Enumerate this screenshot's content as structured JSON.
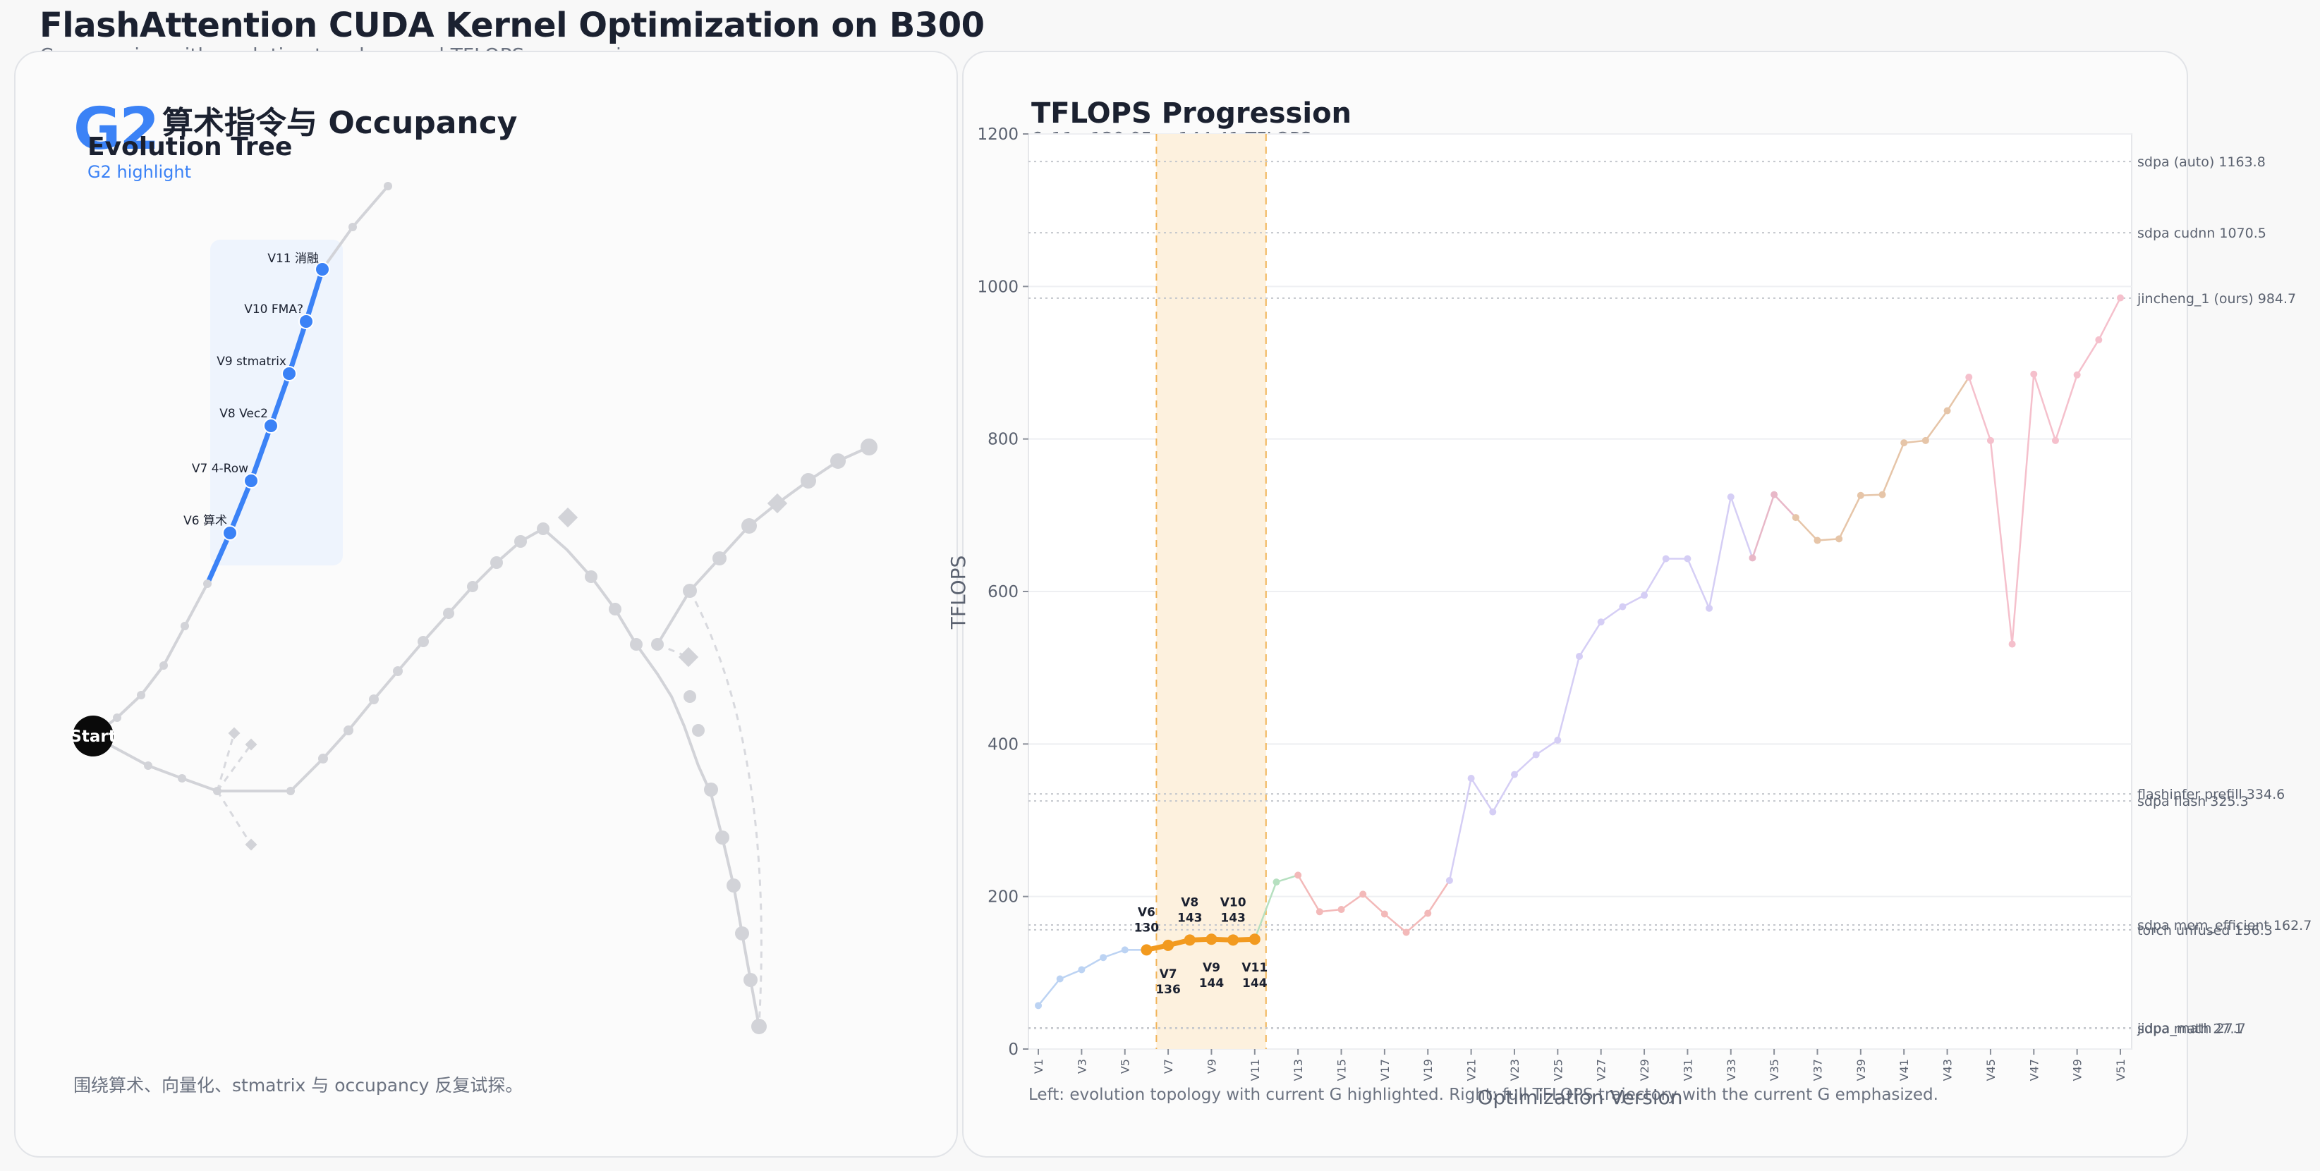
{
  "header": {
    "title": "FlashAttention CUDA Kernel Optimization on B300",
    "subtitle": "Cover series with evolution topology and TFLOPS progression"
  },
  "left_panel": {
    "badge": "G2",
    "group_title": "算术指令与 Occupancy",
    "tree_title": "Evolution Tree",
    "tree_subtitle": "G2 highlight",
    "start_label": "Start",
    "highlight_labels": [
      "V6 算术",
      "V7 4-Row",
      "V8 Vec2",
      "V9 stmatrix",
      "V10 FMA?",
      "V11 消融"
    ],
    "caption": "围绕算术、向量化、stmatrix 与 occupancy 反复试探。"
  },
  "right_panel": {
    "chart_title": "TFLOPS Progression",
    "chart_subtitle": "6–11  ·  130.05 → 144.41 TFLOPS",
    "footnote": "Left: evolution topology with current G highlighted. Right: full TFLOPS trajectory with the current G emphasized."
  },
  "colors": {
    "accent_blue": "#3b82f6",
    "highlight_orange": "#f29a1f",
    "band_fill": "#fdf1de",
    "node_gray": "#d2d3d8"
  },
  "chart_data": {
    "type": "line",
    "xlabel": "Optimization Version",
    "ylabel": "TFLOPS",
    "ylim": [
      0,
      1200
    ],
    "yticks": [
      0,
      200,
      400,
      600,
      800,
      1000,
      1200
    ],
    "x": [
      "V1",
      "V2",
      "V3",
      "V4",
      "V5",
      "V6",
      "V7",
      "V8",
      "V9",
      "V10",
      "V11",
      "V12",
      "V13",
      "V14",
      "V15",
      "V16",
      "V17",
      "V18",
      "V19",
      "V20",
      "V21",
      "V22",
      "V23",
      "V24",
      "V25",
      "V26",
      "V27",
      "V28",
      "V29",
      "V30",
      "V31",
      "V32",
      "V33",
      "V34",
      "V35",
      "V36",
      "V37",
      "V38",
      "V39",
      "V40",
      "V41",
      "V42",
      "V43",
      "V44",
      "V45",
      "V46",
      "V47",
      "V48",
      "V49",
      "V50",
      "V51"
    ],
    "xtick_labels": [
      "V1",
      "V3",
      "V5",
      "V7",
      "V9",
      "V11",
      "V13",
      "V15",
      "V17",
      "V19",
      "V21",
      "V23",
      "V25",
      "V27",
      "V29",
      "V31",
      "V33",
      "V35",
      "V37",
      "V39",
      "V41",
      "V43",
      "V45",
      "V47",
      "V49",
      "V51"
    ],
    "values": [
      57,
      92,
      104,
      120,
      130,
      130,
      136,
      143,
      144,
      143,
      144,
      219,
      228,
      180,
      183,
      203,
      177,
      153,
      178,
      221,
      355,
      311,
      360,
      386,
      405,
      515,
      560,
      580,
      595,
      643,
      643,
      578,
      724,
      644,
      727,
      697,
      667,
      669,
      726,
      727,
      795,
      798,
      837,
      881,
      798,
      531,
      885,
      798,
      884,
      930,
      985
    ],
    "highlight": {
      "start": "V6",
      "end": "V11",
      "from": 130.05,
      "to": 144.41
    },
    "point_labels": [
      {
        "x": "V6",
        "text": [
          "V6",
          "130"
        ],
        "pos": "above"
      },
      {
        "x": "V7",
        "text": [
          "V7",
          "136"
        ],
        "pos": "below"
      },
      {
        "x": "V8",
        "text": [
          "V8",
          "143"
        ],
        "pos": "above"
      },
      {
        "x": "V9",
        "text": [
          "V9",
          "144"
        ],
        "pos": "below"
      },
      {
        "x": "V10",
        "text": [
          "V10",
          "143"
        ],
        "pos": "above"
      },
      {
        "x": "V11",
        "text": [
          "V11",
          "144"
        ],
        "pos": "below"
      }
    ],
    "baselines": [
      {
        "name": "sdpa (auto)",
        "value": 1163.8
      },
      {
        "name": "sdpa cudnn",
        "value": 1070.5
      },
      {
        "name": "jincheng_1 (ours)",
        "value": 984.7
      },
      {
        "name": "flashinfer prefill",
        "value": 334.6
      },
      {
        "name": "sdpa flash",
        "value": 325.3
      },
      {
        "name": "sdpa mem_efficient",
        "value": 162.7
      },
      {
        "name": "torch unfused",
        "value": 156.3
      },
      {
        "name": "jidpa_math",
        "value": 27.7
      },
      {
        "name": "sdpa math",
        "value": 27.1
      }
    ],
    "segment_colors": [
      "#bcd3f3",
      "#bcd3f3",
      "#bcd3f3",
      "#bcd3f3",
      "#bcd3f3",
      "#f29a1f",
      "#f29a1f",
      "#f29a1f",
      "#f29a1f",
      "#f29a1f",
      "#b6e0c0",
      "#b6e0c0",
      "#f3b9b9",
      "#f3b9b9",
      "#f3b9b9",
      "#f3b9b9",
      "#f3b9b9",
      "#f3b9b9",
      "#f3b9b9",
      "#d5cef5",
      "#d5cef5",
      "#d5cef5",
      "#d5cef5",
      "#d5cef5",
      "#d5cef5",
      "#d5cef5",
      "#d5cef5",
      "#d5cef5",
      "#d5cef5",
      "#d5cef5",
      "#d5cef5",
      "#d5cef5",
      "#d5cef5",
      "#e8b8c8",
      "#e8b8c8",
      "#e6c5a8",
      "#e6c5a8",
      "#e6c5a8",
      "#e6c5a8",
      "#e6c5a8",
      "#e6c5a8",
      "#e6c5a8",
      "#e6c5a8",
      "#f5c0cc",
      "#f5c0cc",
      "#f5c0cc",
      "#f5c0cc",
      "#f5c0cc",
      "#f5c0cc",
      "#f5c0cc"
    ]
  }
}
